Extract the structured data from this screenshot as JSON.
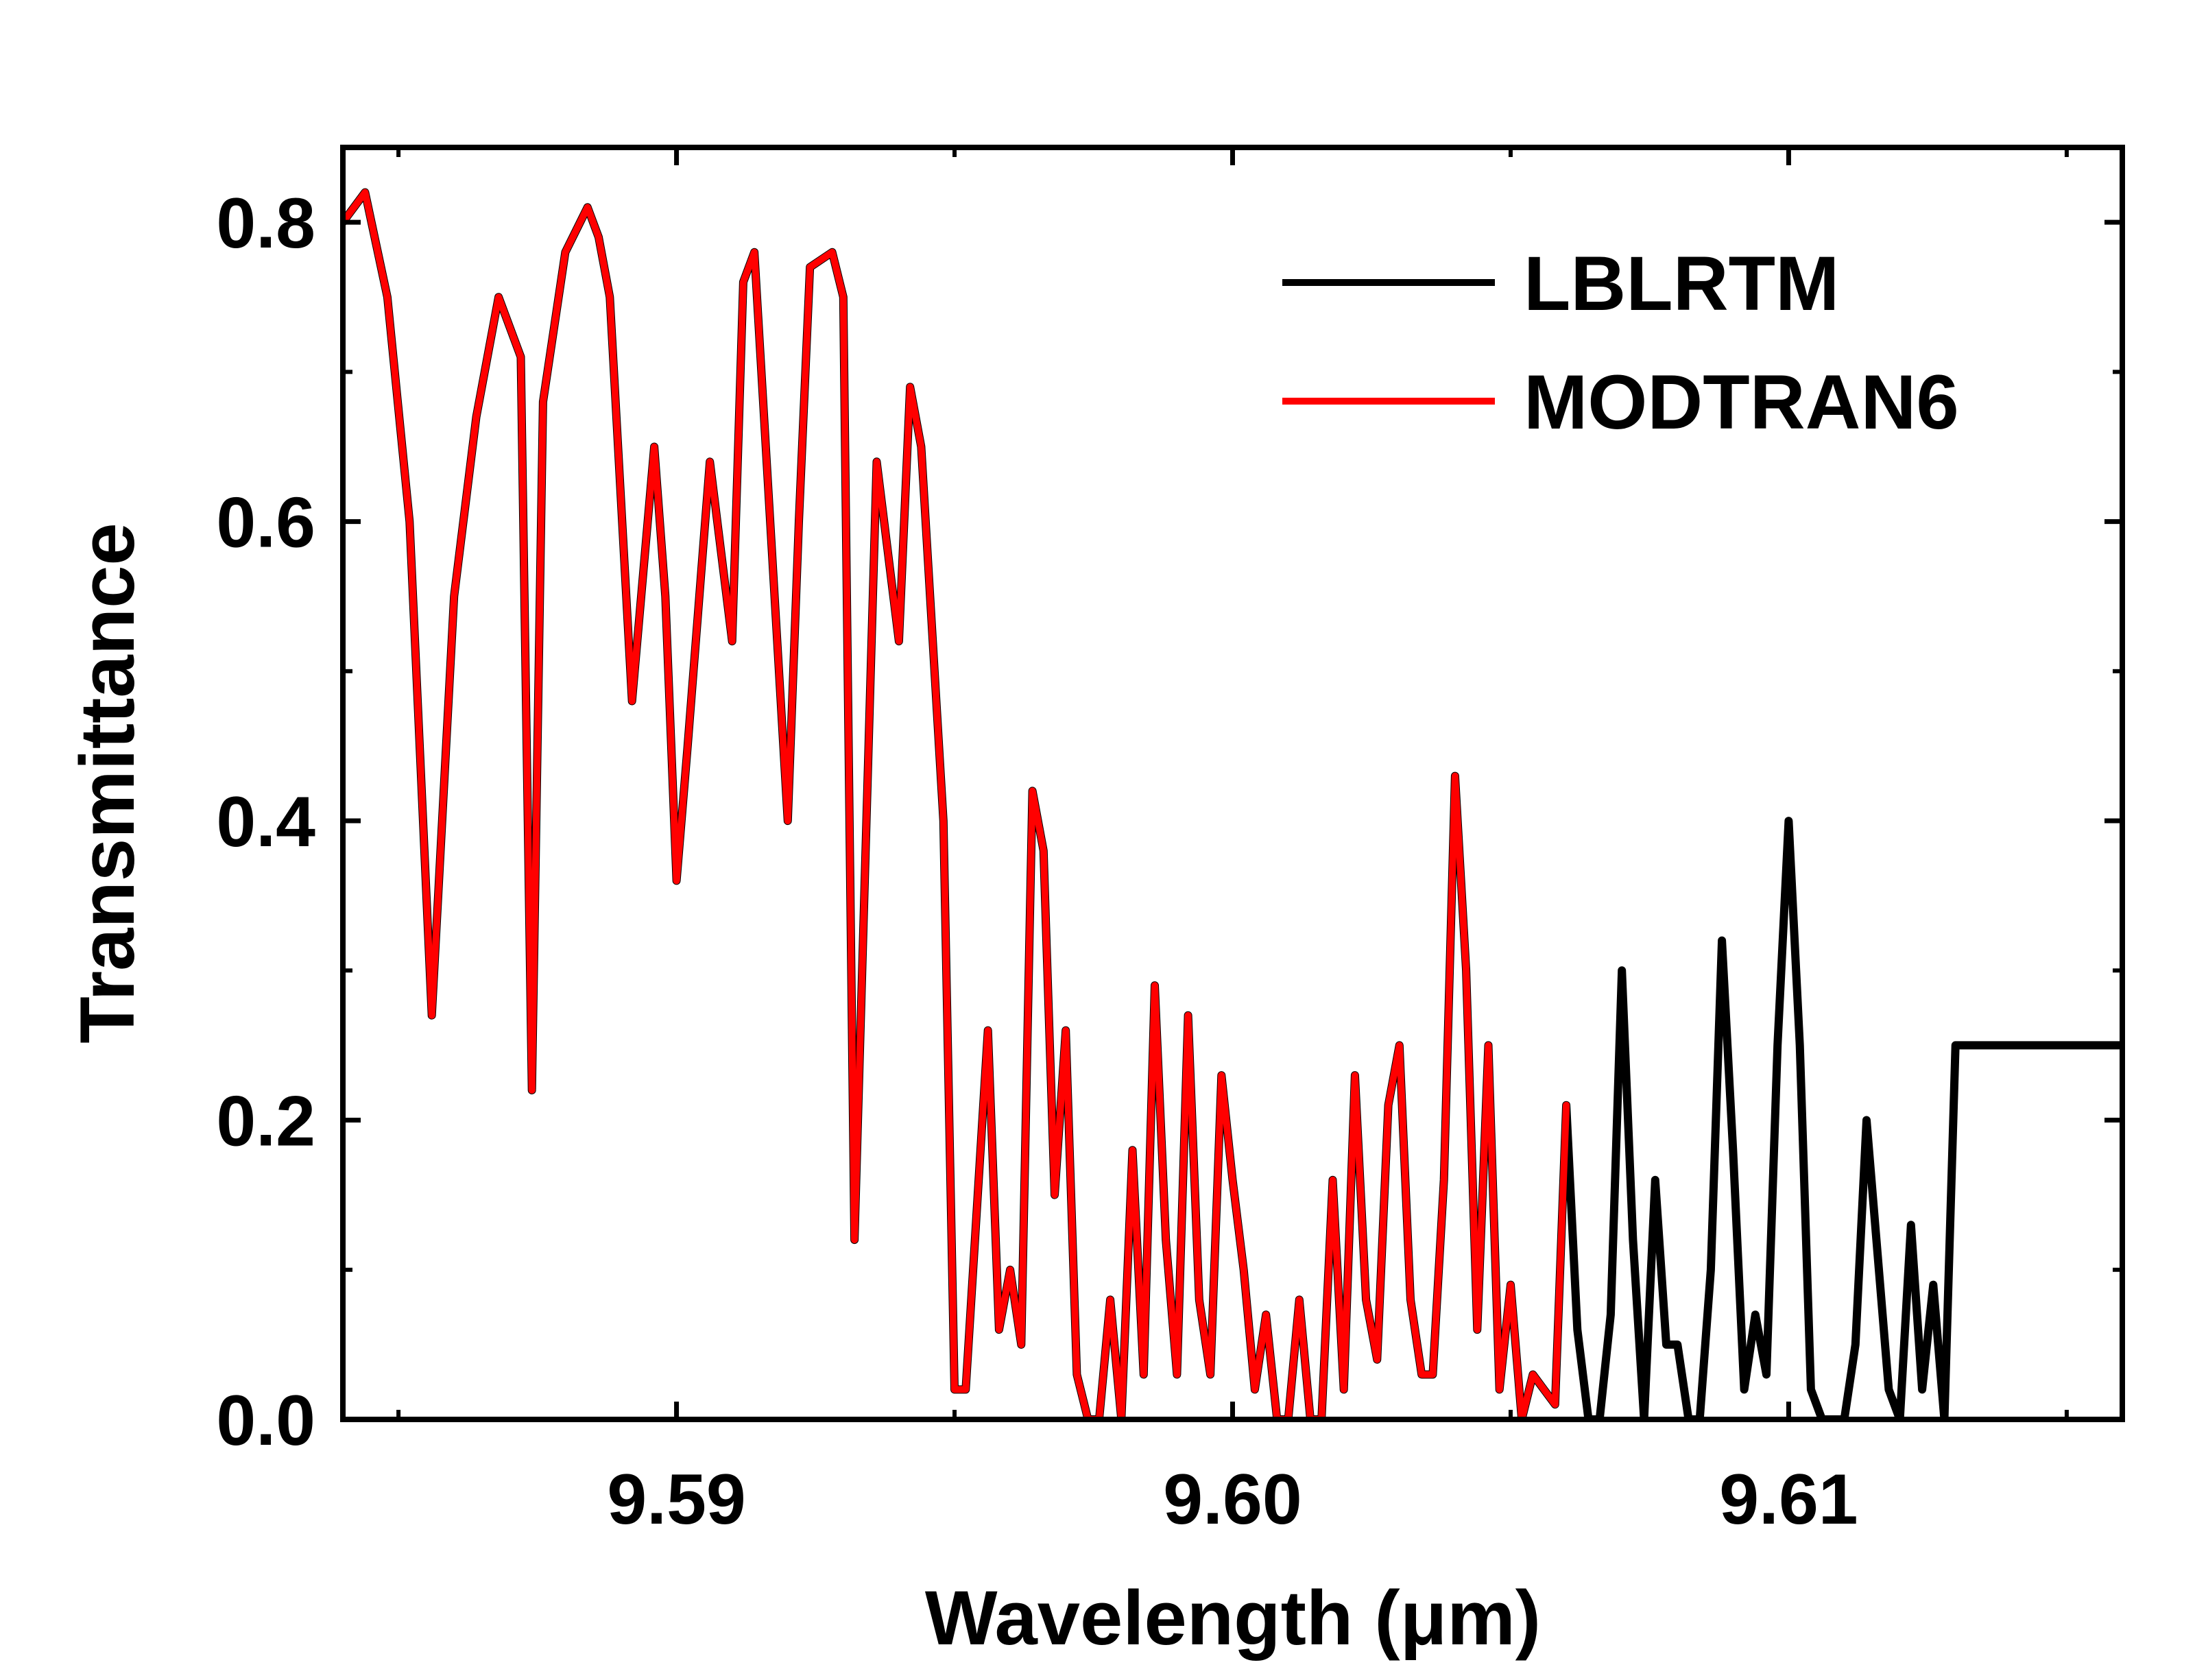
{
  "chart_data": {
    "type": "line",
    "title": "",
    "xlabel": "Wavelength (μm)",
    "ylabel": "Transmittance",
    "xlim": [
      9.584,
      9.616
    ],
    "ylim": [
      0.0,
      0.85
    ],
    "x_ticks": [
      "9.59",
      "9.60",
      "9.61"
    ],
    "y_ticks": [
      "0.0",
      "0.2",
      "0.4",
      "0.6",
      "0.8"
    ],
    "grid": false,
    "legend": "top-right",
    "series": [
      {
        "name": "LBLRTM",
        "color": "#000000",
        "x": [
          9.584,
          9.5844,
          9.5848,
          9.5852,
          9.5856,
          9.586,
          9.5864,
          9.5868,
          9.5872,
          9.5874,
          9.5876,
          9.588,
          9.5884,
          9.5886,
          9.5888,
          9.5892,
          9.5896,
          9.5898,
          9.59,
          9.5902,
          9.5906,
          9.591,
          9.5912,
          9.5914,
          9.592,
          9.5922,
          9.5924,
          9.5928,
          9.593,
          9.5932,
          9.5936,
          9.594,
          9.5942,
          9.5944,
          9.5948,
          9.595,
          9.5952,
          9.5956,
          9.5958,
          9.596,
          9.5962,
          9.5964,
          9.5966,
          9.5968,
          9.597,
          9.5972,
          9.5974,
          9.5976,
          9.5978,
          9.598,
          9.5982,
          9.5984,
          9.5986,
          9.5988,
          9.599,
          9.5992,
          9.5994,
          9.5996,
          9.5998,
          9.6,
          9.6002,
          9.6004,
          9.6006,
          9.6008,
          9.601,
          9.6012,
          9.6014,
          9.6016,
          9.6018,
          9.602,
          9.6022,
          9.6024,
          9.6026,
          9.6028,
          9.603,
          9.6032,
          9.6034,
          9.6036,
          9.6038,
          9.604,
          9.6042,
          9.6044,
          9.6046,
          9.6048,
          9.605,
          9.6052,
          9.6054,
          9.6056,
          9.6058,
          9.606,
          9.6062,
          9.6064,
          9.6066,
          9.6068,
          9.607,
          9.6072,
          9.6074,
          9.6076,
          9.6078,
          9.608,
          9.6082,
          9.6084,
          9.6086,
          9.6088,
          9.609,
          9.6092,
          9.6094,
          9.6096,
          9.6098,
          9.61,
          9.6102,
          9.6104,
          9.6106,
          9.6108,
          9.611,
          9.6112,
          9.6114,
          9.6116,
          9.6118,
          9.612,
          9.6122,
          9.6124,
          9.6126,
          9.6128,
          9.613,
          9.6132,
          9.6134,
          9.6136,
          9.6138,
          9.614,
          9.6142,
          9.6144,
          9.6146,
          9.6148,
          9.615,
          9.6152,
          9.6154,
          9.6156,
          9.6158,
          9.616
        ],
        "y": [
          0.8,
          0.82,
          0.75,
          0.6,
          0.27,
          0.55,
          0.67,
          0.75,
          0.71,
          0.22,
          0.68,
          0.78,
          0.81,
          0.79,
          0.75,
          0.48,
          0.65,
          0.55,
          0.36,
          0.45,
          0.64,
          0.52,
          0.76,
          0.78,
          0.4,
          0.6,
          0.77,
          0.78,
          0.75,
          0.12,
          0.64,
          0.52,
          0.69,
          0.65,
          0.4,
          0.02,
          0.02,
          0.26,
          0.06,
          0.1,
          0.05,
          0.42,
          0.38,
          0.15,
          0.26,
          0.03,
          0.0,
          0.0,
          0.08,
          0.0,
          0.18,
          0.03,
          0.29,
          0.12,
          0.03,
          0.27,
          0.08,
          0.03,
          0.23,
          0.16,
          0.1,
          0.02,
          0.07,
          0.0,
          0.0,
          0.08,
          0.0,
          0.0,
          0.16,
          0.02,
          0.23,
          0.08,
          0.04,
          0.21,
          0.25,
          0.08,
          0.03,
          0.03,
          0.16,
          0.43,
          0.3,
          0.06,
          0.25,
          0.02,
          0.09,
          0.0,
          0.03,
          0.02,
          0.01,
          0.21,
          0.06,
          0.0,
          0.0,
          0.07,
          0.3,
          0.12,
          0.0,
          0.16,
          0.05,
          0.05,
          0.0,
          0.0,
          0.1,
          0.32,
          0.18,
          0.02,
          0.07,
          0.03,
          0.25,
          0.4,
          0.25,
          0.02,
          0.0,
          0.0,
          0.0,
          0.05,
          0.2,
          0.11,
          0.02,
          0.0,
          0.13,
          0.02,
          0.09,
          0.0,
          0.25,
          0.25,
          0.25,
          0.25,
          0.25,
          0.25,
          0.25,
          0.25,
          0.25,
          0.25,
          0.25,
          0.25,
          0.25,
          0.25,
          0.25,
          0.25
        ]
      },
      {
        "name": "MODTRAN6",
        "color": "#ff0000",
        "x": [
          9.584,
          9.5844,
          9.5848,
          9.5852,
          9.5856,
          9.586,
          9.5864,
          9.5868,
          9.5872,
          9.5874,
          9.5876,
          9.588,
          9.5884,
          9.5886,
          9.5888,
          9.5892,
          9.5896,
          9.5898,
          9.59,
          9.5902,
          9.5906,
          9.591,
          9.5912,
          9.5914,
          9.592,
          9.5922,
          9.5924,
          9.5928,
          9.593,
          9.5932,
          9.5936,
          9.594,
          9.5942,
          9.5944,
          9.5948,
          9.595,
          9.5952,
          9.5956,
          9.5958,
          9.596,
          9.5962,
          9.5964,
          9.5966,
          9.5968,
          9.597,
          9.5972,
          9.5974,
          9.5976,
          9.5978,
          9.598,
          9.5982,
          9.5984,
          9.5986,
          9.5988,
          9.599,
          9.5992,
          9.5994,
          9.5996,
          9.5998,
          9.6,
          9.6002,
          9.6004,
          9.6006,
          9.6008,
          9.601,
          9.6012,
          9.6014,
          9.6016,
          9.6018,
          9.602,
          9.6022,
          9.6024,
          9.6026,
          9.6028,
          9.603,
          9.6032,
          9.6034,
          9.6036,
          9.6038,
          9.604,
          9.6042,
          9.6044,
          9.6046,
          9.6048,
          9.605,
          9.6052,
          9.6054,
          9.6056,
          9.6058,
          9.606
        ],
        "y": [
          0.8,
          0.82,
          0.75,
          0.6,
          0.27,
          0.55,
          0.67,
          0.75,
          0.71,
          0.22,
          0.68,
          0.78,
          0.81,
          0.79,
          0.75,
          0.48,
          0.65,
          0.55,
          0.36,
          0.45,
          0.64,
          0.52,
          0.76,
          0.78,
          0.4,
          0.6,
          0.77,
          0.78,
          0.75,
          0.12,
          0.64,
          0.52,
          0.69,
          0.65,
          0.4,
          0.02,
          0.02,
          0.26,
          0.06,
          0.1,
          0.05,
          0.42,
          0.38,
          0.15,
          0.26,
          0.03,
          0.0,
          0.0,
          0.08,
          0.0,
          0.18,
          0.03,
          0.29,
          0.12,
          0.03,
          0.27,
          0.08,
          0.03,
          0.23,
          0.16,
          0.1,
          0.02,
          0.07,
          0.0,
          0.0,
          0.08,
          0.0,
          0.0,
          0.16,
          0.02,
          0.23,
          0.08,
          0.04,
          0.21,
          0.25,
          0.08,
          0.03,
          0.03,
          0.16,
          0.43,
          0.3,
          0.06,
          0.25,
          0.02,
          0.09,
          0.0,
          0.03,
          0.02,
          0.01,
          0.21
        ]
      }
    ]
  }
}
